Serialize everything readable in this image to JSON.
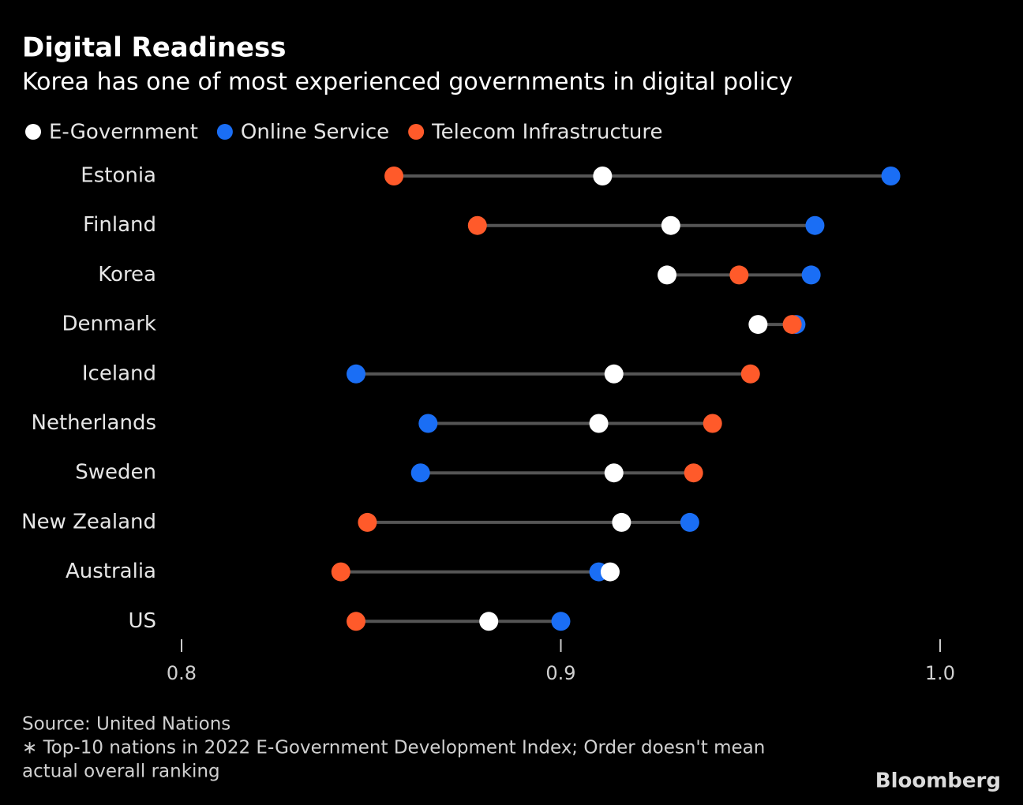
{
  "chart_data": {
    "type": "dot",
    "title": "Digital Readiness",
    "subtitle": "Korea has one of most experienced governments in digital policy",
    "categories": [
      "Estonia",
      "Finland",
      "Korea",
      "Denmark",
      "Iceland",
      "Netherlands",
      "Sweden",
      "New Zealand",
      "Australia",
      "US"
    ],
    "series": [
      {
        "name": "E-Government",
        "color": "#ffffff",
        "values": [
          0.911,
          0.929,
          0.928,
          0.952,
          0.914,
          0.91,
          0.914,
          0.916,
          0.913,
          0.881
        ]
      },
      {
        "name": "Online Service",
        "color": "#1a6ef5",
        "values": [
          0.987,
          0.967,
          0.966,
          0.962,
          0.846,
          0.865,
          0.863,
          0.934,
          0.91,
          0.9
        ]
      },
      {
        "name": "Telecom Infrastructure",
        "color": "#ff5a2a",
        "values": [
          0.856,
          0.878,
          0.947,
          0.961,
          0.95,
          0.94,
          0.935,
          0.849,
          0.842,
          0.846
        ]
      }
    ],
    "xlim": [
      0.8,
      1.0
    ],
    "xticks": [
      0.8,
      0.9,
      {
        "value": 1.0,
        "label": "1.0"
      }
    ],
    "line_color": "#555555",
    "notes": [
      "Source: United Nations",
      "∗ Top-10 nations in 2022 E-Government Development Index; Order doesn't mean",
      "actual overall ranking"
    ],
    "brand": "Bloomberg"
  }
}
